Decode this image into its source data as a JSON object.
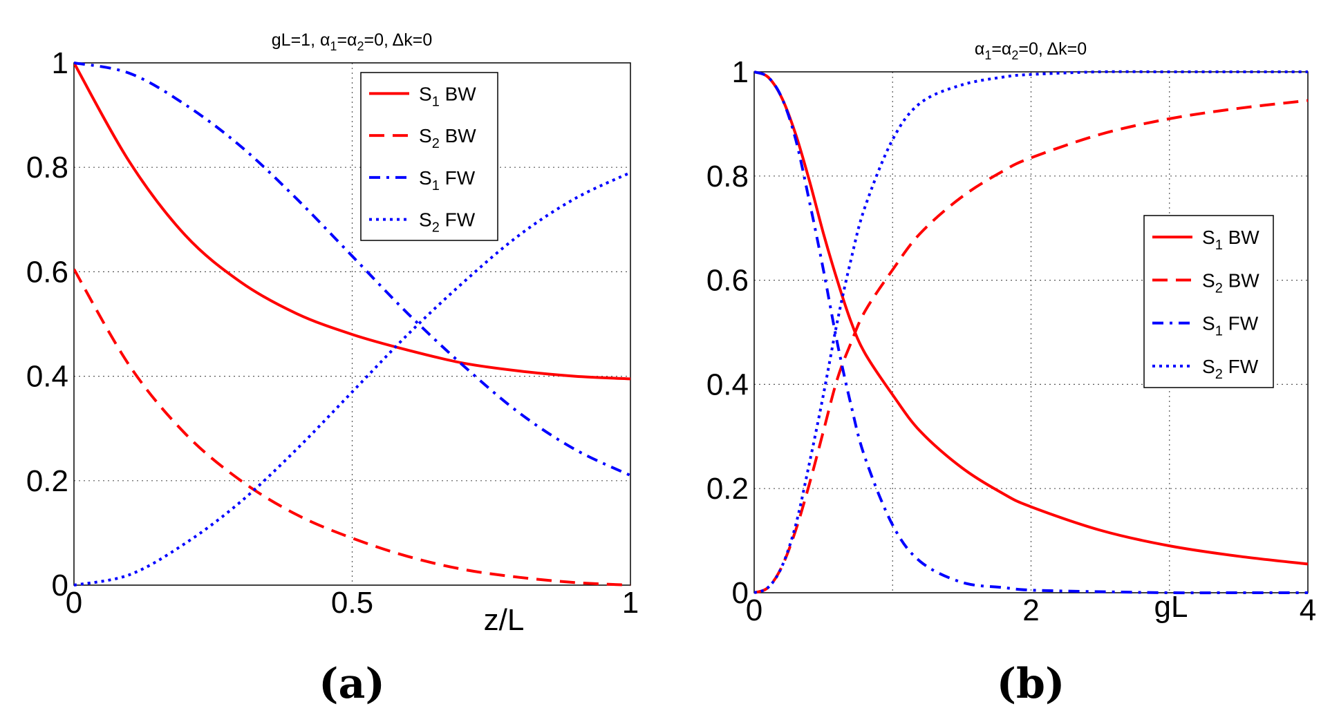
{
  "chart_data": [
    {
      "type": "line",
      "panel_label": "(a)",
      "title": {
        "parts": [
          "gL=1,  α",
          "1",
          "=α",
          "2",
          "=0, Δk=0"
        ]
      },
      "xlabel": "z/L",
      "ylabel": "",
      "xlim": [
        0,
        1
      ],
      "ylim": [
        0,
        1
      ],
      "xticks": [
        0,
        0.5,
        1
      ],
      "xtick_labels": [
        "0",
        "0.5",
        "1"
      ],
      "yticks": [
        0,
        0.2,
        0.4,
        0.6,
        0.8,
        1
      ],
      "ytick_labels": [
        "0",
        "0.2",
        "0.4",
        "0.6",
        "0.8",
        "1"
      ],
      "grid": true,
      "legend_position": "top-right",
      "series": [
        {
          "name": "S1 BW",
          "label_main": "S",
          "label_sub": "1",
          "label_rest": " BW",
          "color": "#ff0000",
          "style": "solid",
          "x": [
            0,
            0.1,
            0.2,
            0.3,
            0.4,
            0.5,
            0.6,
            0.7,
            0.8,
            0.9,
            1.0
          ],
          "y": [
            1.0,
            0.81,
            0.67,
            0.58,
            0.52,
            0.48,
            0.45,
            0.425,
            0.41,
            0.4,
            0.395
          ]
        },
        {
          "name": "S2 BW",
          "label_main": "S",
          "label_sub": "2",
          "label_rest": " BW",
          "color": "#ff0000",
          "style": "dashed",
          "x": [
            0,
            0.1,
            0.2,
            0.3,
            0.4,
            0.5,
            0.6,
            0.7,
            0.8,
            0.9,
            1.0
          ],
          "y": [
            0.605,
            0.42,
            0.29,
            0.2,
            0.135,
            0.09,
            0.055,
            0.03,
            0.015,
            0.005,
            0.0
          ]
        },
        {
          "name": "S1 FW",
          "label_main": "S",
          "label_sub": "1",
          "label_rest": " FW",
          "color": "#0000ff",
          "style": "dashdot",
          "x": [
            0,
            0.1,
            0.2,
            0.3,
            0.4,
            0.5,
            0.6,
            0.7,
            0.8,
            0.9,
            1.0
          ],
          "y": [
            1.0,
            0.98,
            0.92,
            0.84,
            0.74,
            0.63,
            0.52,
            0.42,
            0.33,
            0.26,
            0.21
          ]
        },
        {
          "name": "S2 FW",
          "label_main": "S",
          "label_sub": "2",
          "label_rest": " FW",
          "color": "#0000ff",
          "style": "dotted",
          "x": [
            0,
            0.1,
            0.2,
            0.3,
            0.4,
            0.5,
            0.6,
            0.7,
            0.8,
            0.9,
            1.0
          ],
          "y": [
            0.0,
            0.02,
            0.08,
            0.16,
            0.26,
            0.37,
            0.48,
            0.58,
            0.67,
            0.74,
            0.79
          ]
        }
      ]
    },
    {
      "type": "line",
      "panel_label": "(b)",
      "title": {
        "parts": [
          "α",
          "1",
          "=α",
          "2",
          "=0, Δk=0"
        ]
      },
      "xlabel": "gL",
      "ylabel": "",
      "xlim": [
        0,
        4
      ],
      "ylim": [
        0,
        1
      ],
      "xticks": [
        0,
        2,
        4
      ],
      "xtick_labels": [
        "0",
        "2",
        "4"
      ],
      "xgrid": [
        0,
        1,
        2,
        3,
        4
      ],
      "yticks": [
        0,
        0.2,
        0.4,
        0.6,
        0.8,
        1
      ],
      "ytick_labels": [
        "0",
        "0.2",
        "0.4",
        "0.6",
        "0.8",
        "1"
      ],
      "grid": true,
      "legend_position": "center-right",
      "series": [
        {
          "name": "S1 BW",
          "label_main": "S",
          "label_sub": "1",
          "label_rest": " BW",
          "color": "#ff0000",
          "style": "solid",
          "x": [
            0,
            0.1,
            0.2,
            0.3,
            0.4,
            0.5,
            0.6,
            0.7,
            0.8,
            1.0,
            1.2,
            1.5,
            1.8,
            2.0,
            2.5,
            3.0,
            3.5,
            4.0
          ],
          "y": [
            1.0,
            0.99,
            0.95,
            0.88,
            0.79,
            0.69,
            0.6,
            0.52,
            0.46,
            0.38,
            0.31,
            0.24,
            0.19,
            0.165,
            0.12,
            0.09,
            0.07,
            0.055
          ]
        },
        {
          "name": "S2 BW",
          "label_main": "S",
          "label_sub": "2",
          "label_rest": " BW",
          "color": "#ff0000",
          "style": "dashed",
          "x": [
            0,
            0.1,
            0.2,
            0.3,
            0.4,
            0.5,
            0.6,
            0.7,
            0.8,
            1.0,
            1.2,
            1.5,
            1.8,
            2.0,
            2.5,
            3.0,
            3.5,
            4.0
          ],
          "y": [
            0.0,
            0.01,
            0.05,
            0.12,
            0.21,
            0.31,
            0.41,
            0.48,
            0.54,
            0.62,
            0.69,
            0.76,
            0.81,
            0.835,
            0.88,
            0.91,
            0.93,
            0.945
          ]
        },
        {
          "name": "S1 FW",
          "label_main": "S",
          "label_sub": "1",
          "label_rest": " FW",
          "color": "#0000ff",
          "style": "dashdot",
          "x": [
            0,
            0.1,
            0.2,
            0.3,
            0.4,
            0.5,
            0.6,
            0.7,
            0.8,
            1.0,
            1.2,
            1.5,
            1.8,
            2.0,
            2.5,
            3.0,
            3.5,
            4.0
          ],
          "y": [
            1.0,
            0.99,
            0.95,
            0.87,
            0.75,
            0.62,
            0.48,
            0.36,
            0.26,
            0.13,
            0.06,
            0.02,
            0.01,
            0.005,
            0.002,
            0.0,
            0.0,
            0.0
          ]
        },
        {
          "name": "S2 FW",
          "label_main": "S",
          "label_sub": "2",
          "label_rest": " FW",
          "color": "#0000ff",
          "style": "dotted",
          "x": [
            0,
            0.1,
            0.2,
            0.3,
            0.4,
            0.5,
            0.6,
            0.7,
            0.8,
            1.0,
            1.2,
            1.5,
            1.8,
            2.0,
            2.5,
            3.0,
            3.5,
            4.0
          ],
          "y": [
            0.0,
            0.01,
            0.05,
            0.13,
            0.25,
            0.38,
            0.52,
            0.64,
            0.74,
            0.87,
            0.94,
            0.975,
            0.99,
            0.995,
            1.0,
            1.0,
            1.0,
            1.0
          ]
        }
      ]
    }
  ]
}
